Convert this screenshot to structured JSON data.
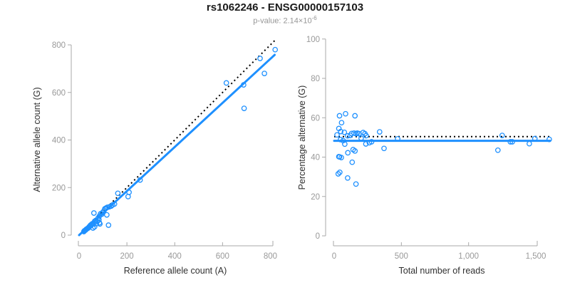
{
  "header": {
    "title": "rs1062246 - ENSG00000157103",
    "subtitle_prefix": "p-value: 2.14×10",
    "subtitle_exponent": "-6"
  },
  "colors": {
    "accent_blue": "#1E90FF",
    "dotted_line": "#000000",
    "axis_line": "#aaaaaa",
    "tick_label": "#999999",
    "axis_title": "#303030",
    "title_text": "#1a1a1a",
    "subtitle_text": "#969696"
  },
  "chart_data": [
    {
      "type": "scatter",
      "name": "allele-counts-scatter",
      "xlabel": "Reference allele count (A)",
      "ylabel": "Alternative allele count (G)",
      "xlim": [
        0,
        820
      ],
      "ylim": [
        0,
        820
      ],
      "xticks": [
        0,
        200,
        400,
        600,
        800
      ],
      "xtick_labels": [
        "0",
        "200",
        "400",
        "600",
        "800"
      ],
      "yticks": [
        0,
        200,
        400,
        600,
        800
      ],
      "ytick_labels": [
        "0",
        "200",
        "400",
        "600",
        "800"
      ],
      "grid": false,
      "regression_line": {
        "x1": 0,
        "y1": 0,
        "x2": 818,
        "y2": 758,
        "style": "solid"
      },
      "identity_line": {
        "x1": 2,
        "y1": 2,
        "x2": 820,
        "y2": 820,
        "style": "dotted"
      },
      "points": [
        [
          820,
          780
        ],
        [
          757,
          743
        ],
        [
          775,
          680
        ],
        [
          616,
          640
        ],
        [
          688,
          632
        ],
        [
          690,
          533
        ],
        [
          255,
          232
        ],
        [
          209,
          180
        ],
        [
          205,
          162
        ],
        [
          162,
          176
        ],
        [
          148,
          131
        ],
        [
          140,
          127
        ],
        [
          134,
          122
        ],
        [
          126,
          119
        ],
        [
          118,
          117
        ],
        [
          113,
          114
        ],
        [
          108,
          111
        ],
        [
          105,
          104
        ],
        [
          116,
          85
        ],
        [
          98,
          95
        ],
        [
          95,
          88
        ],
        [
          90,
          90
        ],
        [
          62,
          93
        ],
        [
          85,
          80
        ],
        [
          80,
          72
        ],
        [
          83,
          65
        ],
        [
          76,
          57
        ],
        [
          85,
          52
        ],
        [
          87,
          47
        ],
        [
          123,
          42
        ],
        [
          72,
          48
        ],
        [
          70,
          62
        ],
        [
          65,
          58
        ],
        [
          60,
          50
        ],
        [
          55,
          48
        ],
        [
          52,
          45
        ],
        [
          50,
          40
        ],
        [
          48,
          42
        ],
        [
          45,
          38
        ],
        [
          42,
          35
        ],
        [
          40,
          32
        ],
        [
          38,
          30
        ],
        [
          35,
          28
        ],
        [
          30,
          25
        ],
        [
          28,
          22
        ],
        [
          25,
          20
        ],
        [
          22,
          18
        ],
        [
          20,
          15
        ],
        [
          65,
          35
        ],
        [
          58,
          30
        ]
      ]
    },
    {
      "type": "scatter",
      "name": "percentage-vs-reads-scatter",
      "xlabel": "Total number of reads",
      "ylabel": "Percentage alternative (G)",
      "xlim": [
        0,
        1600
      ],
      "ylim": [
        0,
        100
      ],
      "xticks": [
        0,
        500,
        1000,
        1500
      ],
      "xtick_labels": [
        "0",
        "500",
        "1,000",
        "1,500"
      ],
      "yticks": [
        0,
        20,
        40,
        60,
        80,
        100
      ],
      "ytick_labels": [
        "0",
        "20",
        "40",
        "60",
        "80",
        "100"
      ],
      "grid": false,
      "mean_line": {
        "value": 48.3,
        "style": "solid"
      },
      "expected_line": {
        "value": 50.4,
        "style": "dotted"
      },
      "points": [
        [
          40,
          61
        ],
        [
          85,
          62
        ],
        [
          155,
          61
        ],
        [
          55,
          57.5
        ],
        [
          35,
          54.5
        ],
        [
          49,
          53
        ],
        [
          76,
          52.6
        ],
        [
          130,
          52
        ],
        [
          148,
          52.2
        ],
        [
          162,
          51.9
        ],
        [
          172,
          52.2
        ],
        [
          185,
          51.9
        ],
        [
          215,
          52.5
        ],
        [
          229,
          51.9
        ],
        [
          338,
          52.8
        ],
        [
          21,
          51.3
        ],
        [
          100,
          50.8
        ],
        [
          120,
          51
        ],
        [
          201,
          49.6
        ],
        [
          238,
          50.9
        ],
        [
          47,
          48.9
        ],
        [
          67,
          48.4
        ],
        [
          79,
          46.6
        ],
        [
          236,
          46.7
        ],
        [
          262,
          47.3
        ],
        [
          278,
          47.8
        ],
        [
          472,
          49.3
        ],
        [
          371,
          44.4
        ],
        [
          155,
          43.1
        ],
        [
          102,
          42.2
        ],
        [
          141,
          43.8
        ],
        [
          134,
          37.4
        ],
        [
          35,
          40.2
        ],
        [
          53,
          39.8
        ],
        [
          40,
          40.1
        ],
        [
          30,
          31.5
        ],
        [
          42,
          32.3
        ],
        [
          100,
          29.4
        ],
        [
          162,
          26.3
        ],
        [
          1250,
          51
        ],
        [
          1218,
          43.5
        ],
        [
          1311,
          47.8
        ],
        [
          1325,
          47.8
        ],
        [
          1452,
          46.8
        ],
        [
          1493,
          49.4
        ],
        [
          1600,
          49
        ]
      ]
    }
  ]
}
